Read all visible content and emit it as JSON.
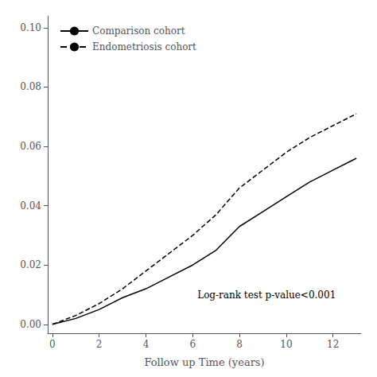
{
  "chart_data": {
    "type": "line",
    "xlabel": "Follow up Time (years)",
    "xlim": [
      -0.2,
      13.2
    ],
    "ylim": [
      -0.003,
      0.104
    ],
    "xticks": [
      0,
      2,
      4,
      6,
      8,
      10,
      12
    ],
    "yticks": [
      {
        "value": 0.0,
        "label": "0.00"
      },
      0.02,
      0.04,
      0.06,
      0.08,
      {
        "value": 0.1,
        "label": "0.10"
      }
    ],
    "x": [
      0,
      1,
      2,
      3,
      4,
      5,
      6,
      7,
      8,
      9,
      10,
      11,
      12,
      13
    ],
    "series": [
      {
        "name": "Comparison cohort",
        "color": "#000000",
        "line_style": "solid",
        "values": [
          0.0,
          0.002,
          0.005,
          0.009,
          0.012,
          0.016,
          0.02,
          0.025,
          0.033,
          0.038,
          0.043,
          0.048,
          0.052,
          0.056
        ]
      },
      {
        "name": "Endometriosis cohort",
        "color": "#000000",
        "line_style": "dashed",
        "values": [
          0.0,
          0.003,
          0.007,
          0.012,
          0.018,
          0.024,
          0.03,
          0.037,
          0.046,
          0.052,
          0.058,
          0.063,
          0.067,
          0.071
        ]
      }
    ],
    "annotations": [
      {
        "text": "Log-rank test p-value<0.001",
        "x": 6.2,
        "y": 0.01
      }
    ],
    "legend": "upper left",
    "grid": false
  }
}
